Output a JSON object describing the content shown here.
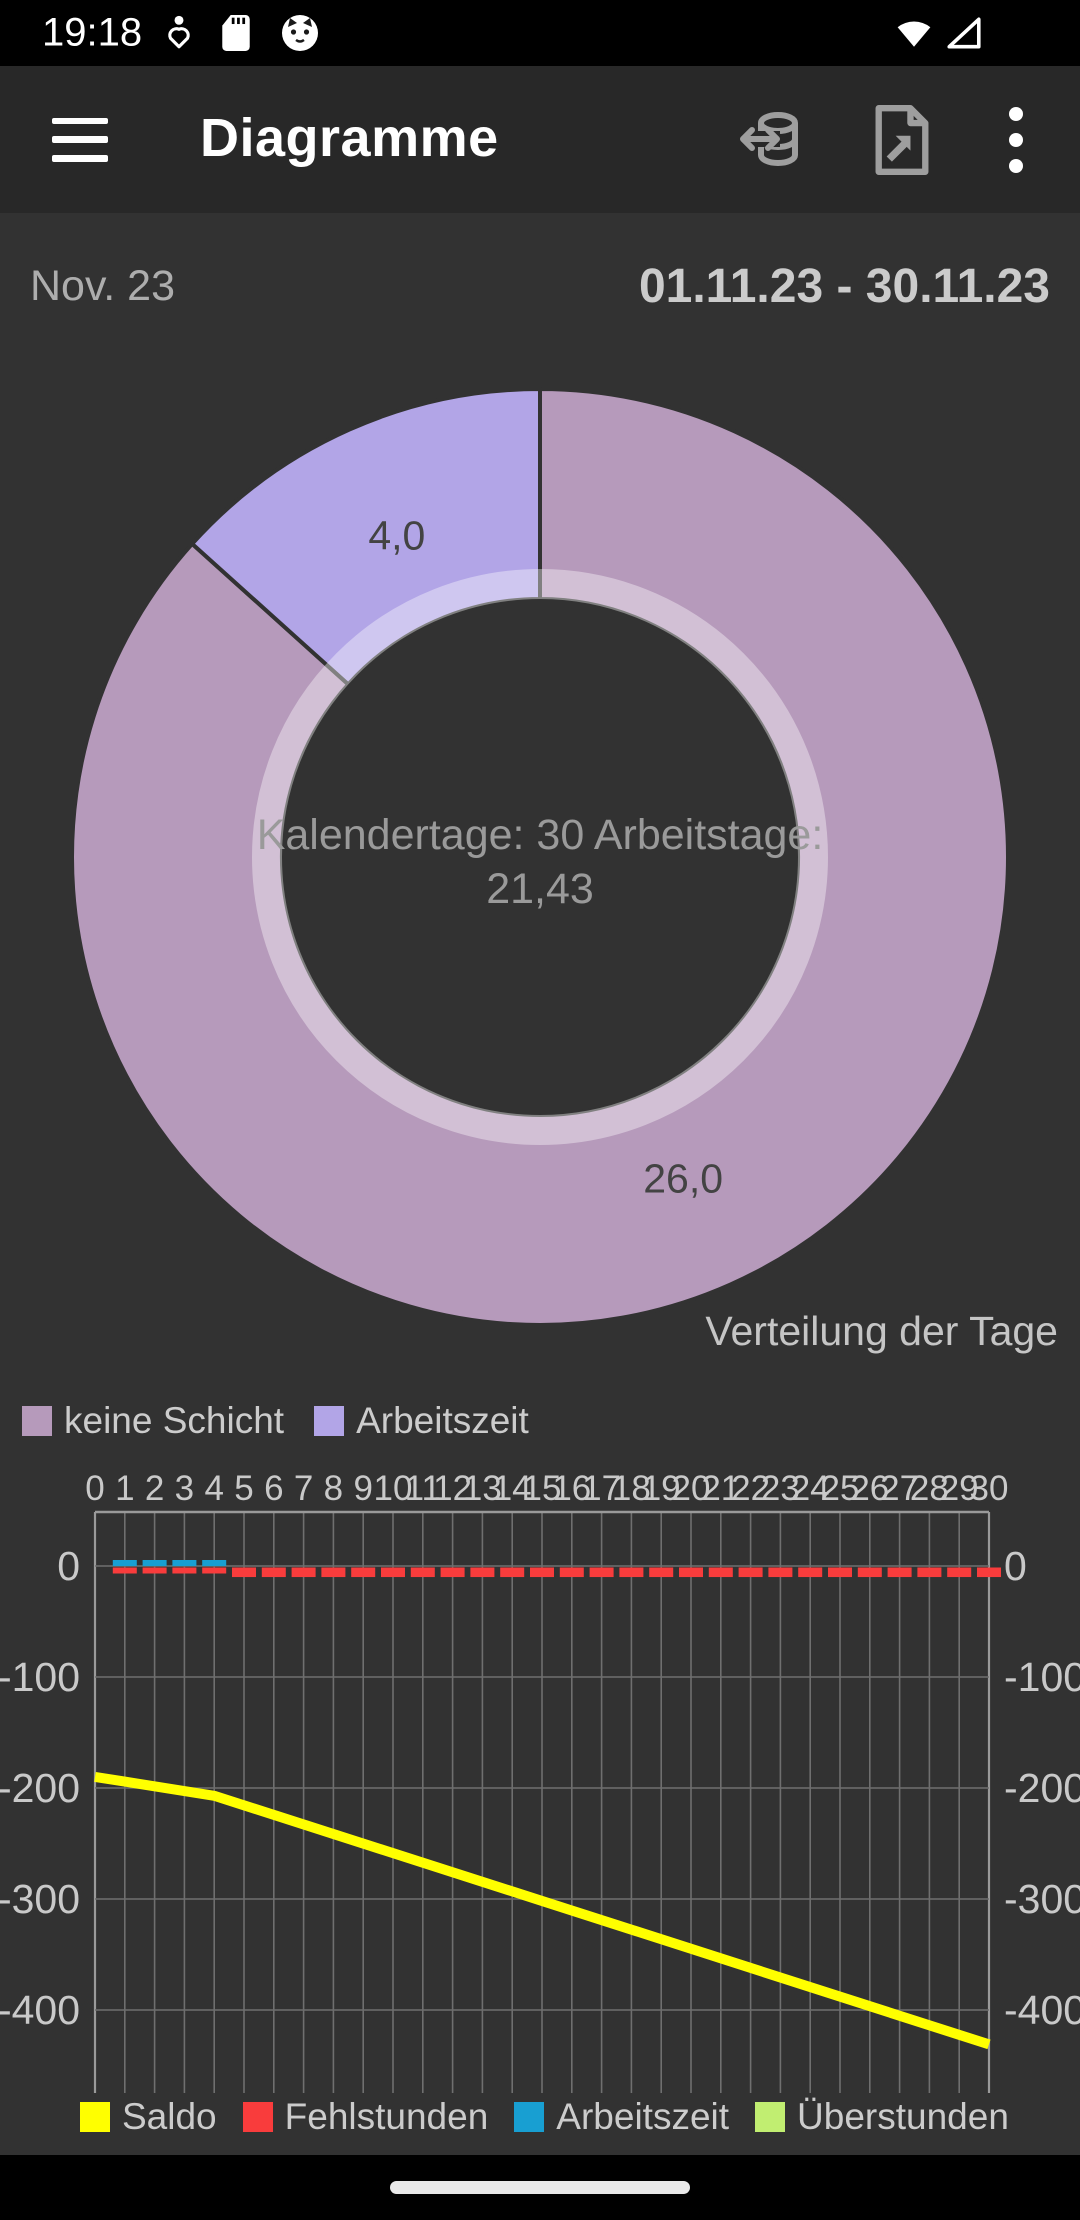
{
  "status_bar": {
    "time": "19:18",
    "icons_left": [
      "wellbeing-heart-icon",
      "sd-card-icon",
      "cat-app-icon"
    ],
    "icons_right": [
      "wifi-icon",
      "cell-signal-icon"
    ]
  },
  "app_bar": {
    "title": "Diagramme",
    "nav_icon": "hamburger-menu-icon",
    "actions": [
      "data-import-export-icon",
      "export-file-icon",
      "overflow-menu-icon"
    ]
  },
  "period": {
    "month_label": "Nov. 23",
    "range_label": "01.11.23 - 30.11.23"
  },
  "chart_data": [
    {
      "type": "pie",
      "title": "Verteilung der Tage",
      "total": 30,
      "center_text": "Kalendertage: 30 Arbeitstage: 21,43",
      "center_text_lines": [
        "Kalendertage: 30 Arbeitstage:",
        "21,43"
      ],
      "slices": [
        {
          "label": "keine Schicht",
          "value": 26.0,
          "value_label": "26,0",
          "color": "#b69abb"
        },
        {
          "label": "Arbeitszeit",
          "value": 4.0,
          "value_label": "4,0",
          "color": "#b2a5e7"
        }
      ],
      "start_angle_deg_from_top": 0,
      "direction": "clockwise",
      "donut": true,
      "hole_ring_alpha": 0.38,
      "legend_position": "bottom-left"
    },
    {
      "type": "combined-line-bar",
      "x_axis": {
        "position": "top",
        "labels": [
          "0",
          "1",
          "2",
          "3",
          "4",
          "5",
          "6",
          "7",
          "8",
          "9",
          "10",
          "11",
          "12",
          "13",
          "14",
          "15",
          "16",
          "17",
          "18",
          "19",
          "20",
          "21",
          "22",
          "23",
          "24",
          "25",
          "26",
          "27",
          "28",
          "29",
          "30"
        ]
      },
      "y_axis": {
        "tick_labels": [
          "0",
          "-100",
          "-200",
          "-300",
          "-400"
        ],
        "ticks": [
          0,
          -100,
          -200,
          -300,
          -400
        ],
        "ylim": [
          -475,
          48
        ],
        "sides": "left+right",
        "grid": true
      },
      "series": [
        {
          "name": "Saldo",
          "type": "line",
          "color": "#ffff00",
          "interpolation": "linear",
          "points": [
            [
              0,
              -190
            ],
            [
              4,
              -207
            ],
            [
              30,
              -431
            ]
          ]
        },
        {
          "name": "Fehlstunden",
          "type": "bar",
          "color": "#f93c3c",
          "first_day": 1,
          "values": [
            -4.3,
            -4.3,
            -4.3,
            -4.3,
            -8.6,
            -8.6,
            -8.6,
            -8.6,
            -8.6,
            -8.6,
            -8.6,
            -8.6,
            -8.6,
            -8.6,
            -8.6,
            -8.6,
            -8.6,
            -8.6,
            -8.6,
            -8.6,
            -8.6,
            -8.6,
            -8.6,
            -8.6,
            -8.6,
            -8.6,
            -8.6,
            -8.6,
            -8.6,
            -8.6
          ]
        },
        {
          "name": "Arbeitszeit",
          "type": "bar",
          "color": "#189fd2",
          "first_day": 1,
          "values": [
            4.3,
            4.3,
            4.3,
            4.3
          ]
        },
        {
          "name": "Überstunden",
          "type": "bar",
          "color": "#c1ee71",
          "first_day": 1,
          "values": []
        }
      ],
      "legend_position": "bottom"
    }
  ],
  "colors": {
    "background": "#323232",
    "app_bar": "#282828",
    "grid_line": "#6f6f6f",
    "axis_border": "#9a9a9a",
    "axis_text": "#c9c9c9",
    "slice_value_text": "#434343",
    "pie_center_text": "#9a9a9a",
    "description_text": "#c5c5c5"
  }
}
